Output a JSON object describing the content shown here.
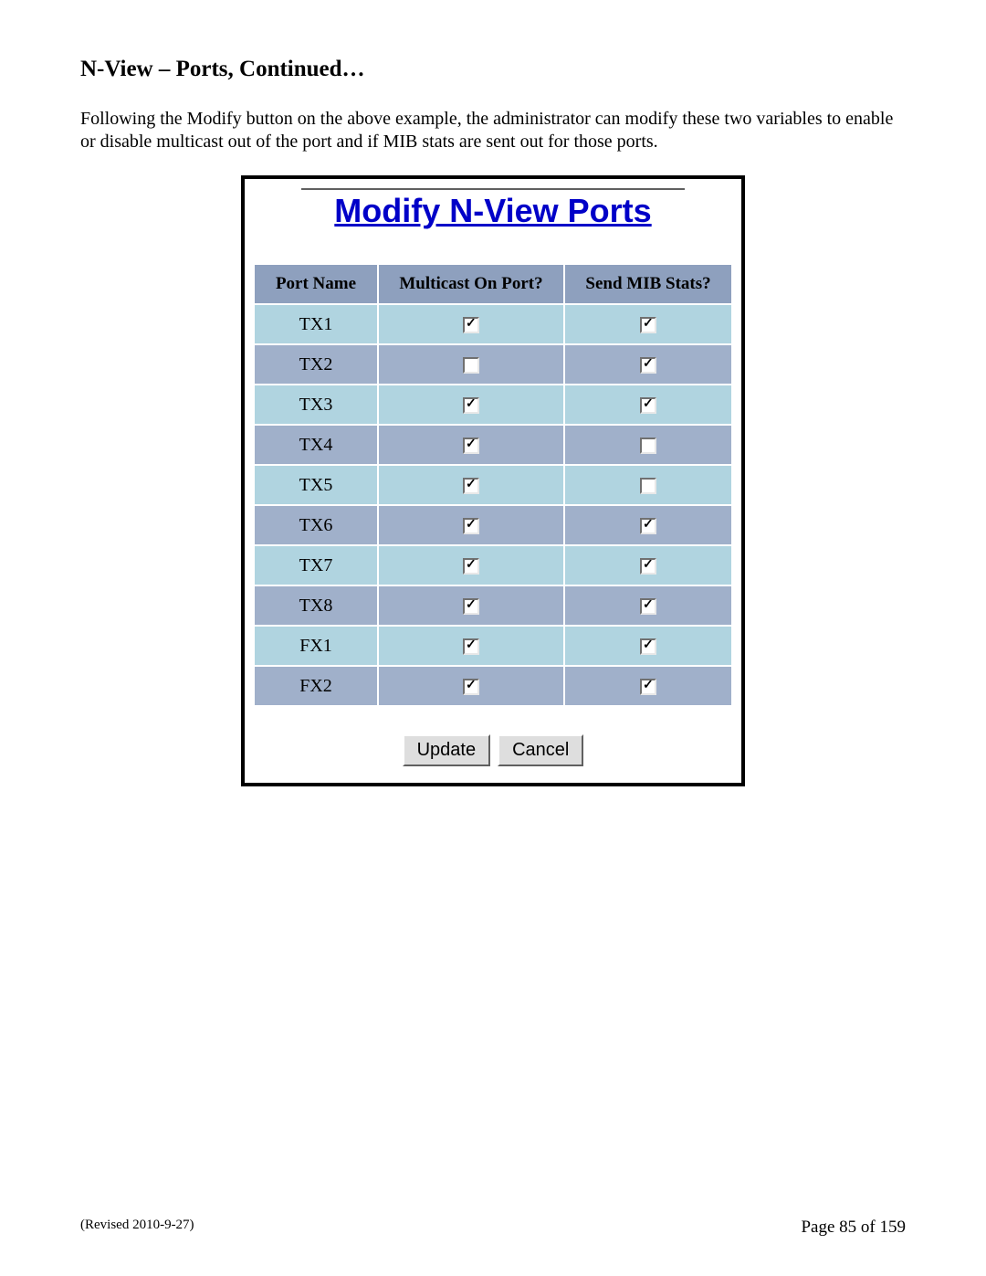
{
  "heading": "N-View – Ports, Continued…",
  "paragraph": "Following the Modify button on the above example, the administrator can modify these two variables to enable or disable multicast out of the port and if MIB stats are sent out for those ports.",
  "panel": {
    "title": "Modify N-View Ports",
    "columns": [
      "Port Name",
      "Multicast On Port?",
      "Send MIB Stats?"
    ],
    "row_colors": {
      "odd": "#b0d4e0",
      "even": "#a0b0ca"
    },
    "rows": [
      {
        "port": "TX1",
        "multicast": true,
        "mib": true
      },
      {
        "port": "TX2",
        "multicast": false,
        "mib": true
      },
      {
        "port": "TX3",
        "multicast": true,
        "mib": true
      },
      {
        "port": "TX4",
        "multicast": true,
        "mib": false
      },
      {
        "port": "TX5",
        "multicast": true,
        "mib": false
      },
      {
        "port": "TX6",
        "multicast": true,
        "mib": true
      },
      {
        "port": "TX7",
        "multicast": true,
        "mib": true
      },
      {
        "port": "TX8",
        "multicast": true,
        "mib": true
      },
      {
        "port": "FX1",
        "multicast": true,
        "mib": true
      },
      {
        "port": "FX2",
        "multicast": true,
        "mib": true
      }
    ],
    "buttons": {
      "update": "Update",
      "cancel": "Cancel"
    }
  },
  "footer": {
    "revised": "(Revised 2010-9-27)",
    "page": "Page 85 of 159"
  }
}
